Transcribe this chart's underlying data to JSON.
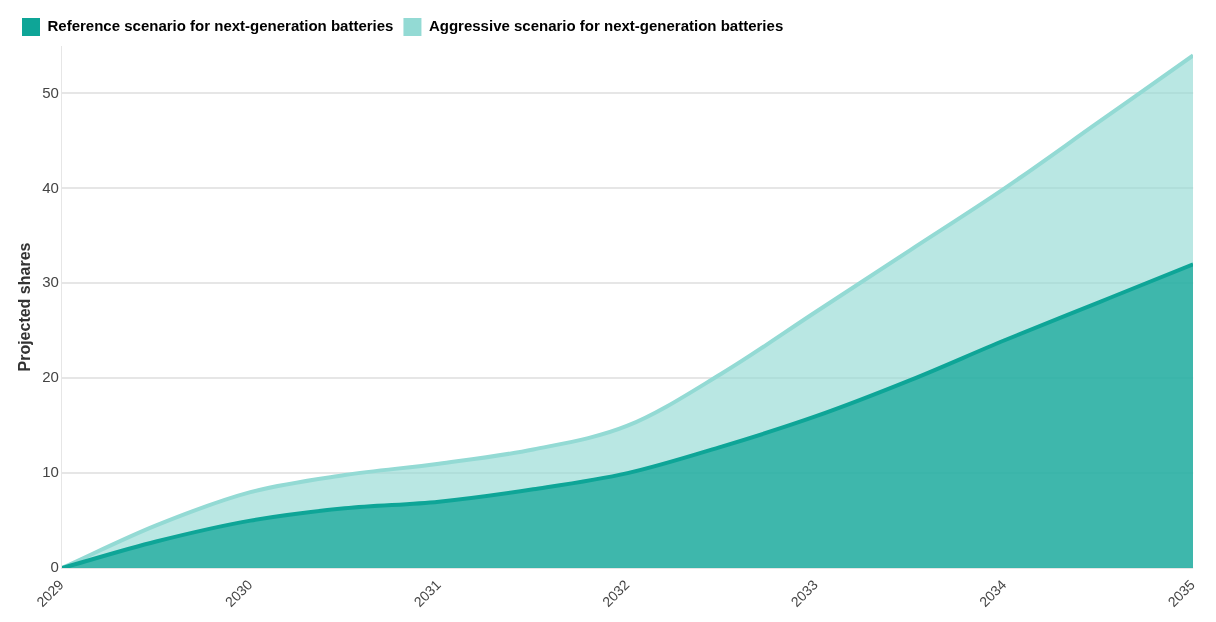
{
  "chart_data": {
    "type": "area",
    "ylabel": "Projected shares",
    "x": [
      2029,
      2029.5,
      2030,
      2030.5,
      2031,
      2031.5,
      2032,
      2032.5,
      2033,
      2033.5,
      2034,
      2034.5,
      2035
    ],
    "series": [
      {
        "name": "Reference scenario for next-generation batteries",
        "color": "#0ea597",
        "values": [
          0,
          2.8,
          5,
          6.3,
          7,
          8.3,
          10,
          12.8,
          16,
          19.8,
          24,
          28,
          32
        ]
      },
      {
        "name": "Aggressive scenario for next-generation batteries",
        "color": "#93dad4",
        "values": [
          0,
          4.5,
          8,
          9.8,
          11,
          12.5,
          15,
          20.5,
          27,
          33.5,
          40,
          47,
          54
        ]
      }
    ],
    "xlim": [
      2029,
      2035
    ],
    "xticks": [
      2029,
      2030,
      2031,
      2032,
      2033,
      2034,
      2035
    ],
    "ylim": [
      0,
      55
    ],
    "yticks": [
      0,
      10,
      20,
      30,
      40,
      50
    ],
    "grid": "y",
    "legend": "top left"
  }
}
